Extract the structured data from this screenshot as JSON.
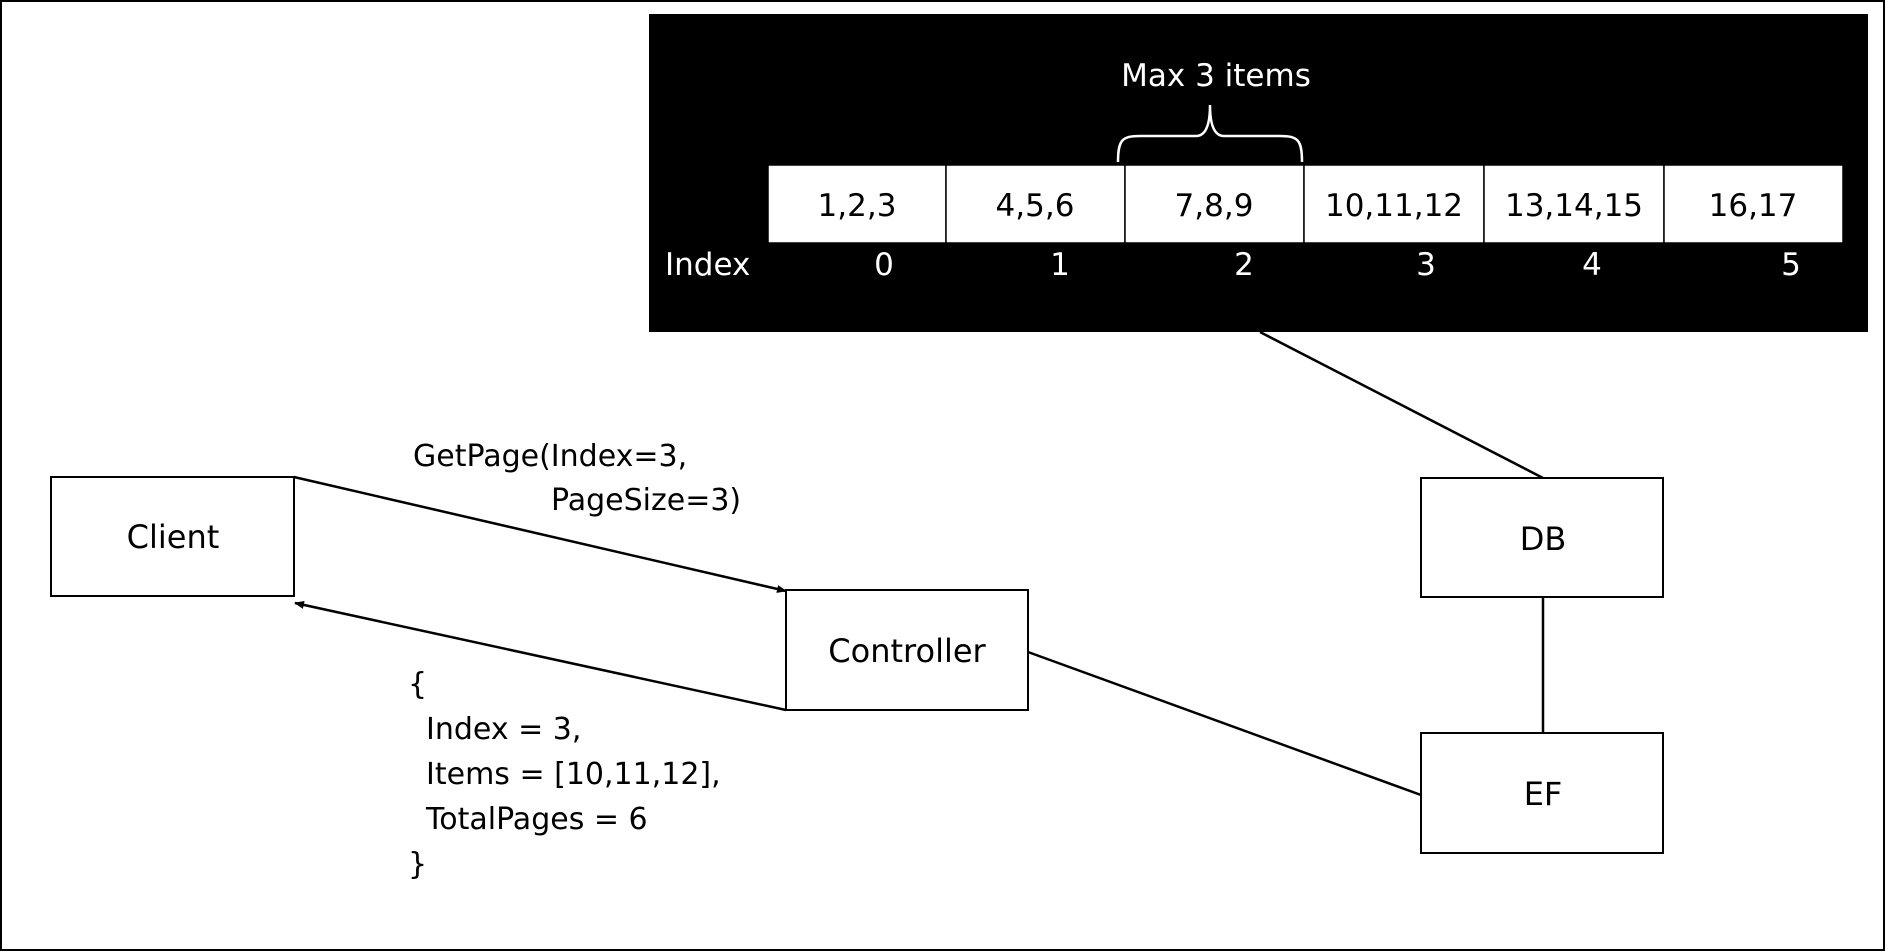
{
  "colors": {
    "background": "#ffffff",
    "panel": "#000000",
    "panel_text": "#ffffff",
    "ink": "#000000",
    "cell_fill": "#ffffff"
  },
  "db_panel": {
    "brace_label": "Max 3 items",
    "index_label": "Index",
    "pages": [
      {
        "items": "1,2,3",
        "index": "0"
      },
      {
        "items": "4,5,6",
        "index": "1"
      },
      {
        "items": "7,8,9",
        "index": "2"
      },
      {
        "items": "10,11,12",
        "index": "3"
      },
      {
        "items": "13,14,15",
        "index": "4"
      },
      {
        "items": "16,17",
        "index": "5"
      }
    ]
  },
  "nodes": {
    "client": "Client",
    "controller": "Controller",
    "db": "DB",
    "ef": "EF"
  },
  "request": {
    "line1": "GetPage(Index=3,",
    "line2": "PageSize=3)"
  },
  "response": {
    "lines": [
      "{",
      "Index = 3,",
      "Items = [10,11,12],",
      "TotalPages = 6",
      "}"
    ]
  }
}
